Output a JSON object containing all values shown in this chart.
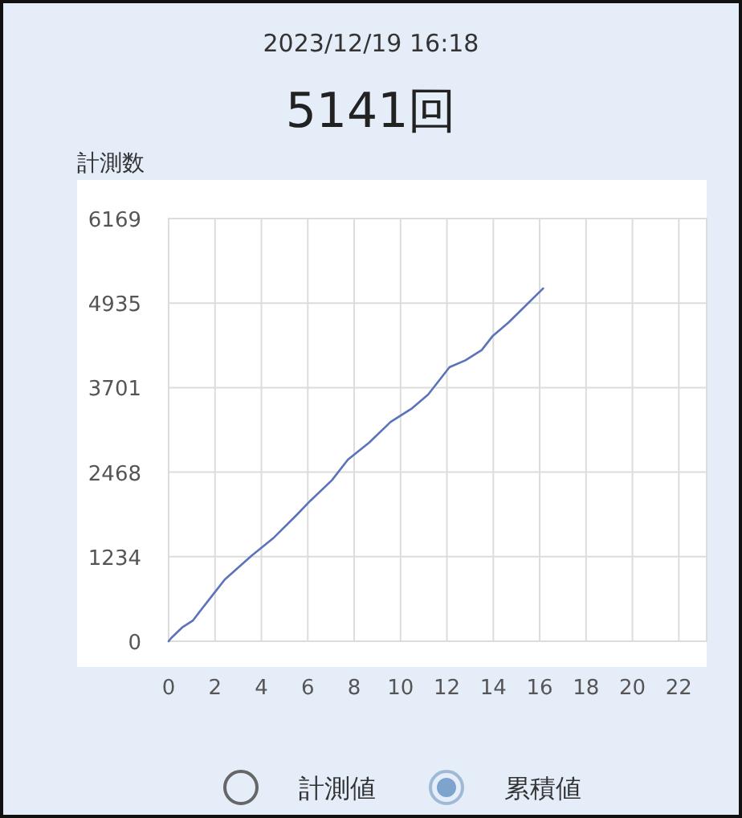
{
  "chart_data": {
    "type": "line",
    "title": "2023/12/19 16:18",
    "subtitle": "5141回",
    "ylabel": "計測数",
    "x": [
      0,
      0.12,
      0.58,
      1.04,
      1.61,
      2.42,
      3.58,
      4.5,
      5.54,
      6.11,
      7.04,
      7.73,
      8.65,
      9.57,
      10.5,
      11.19,
      12.11,
      12.8,
      13.5,
      13.96,
      14.65,
      15.1,
      16.15
    ],
    "series": [
      {
        "color": "#5b73b8",
        "values": [
          0,
          50,
          200,
          300,
          550,
          900,
          1250,
          1500,
          1850,
          2050,
          2350,
          2650,
          2900,
          3200,
          3400,
          3600,
          4000,
          4100,
          4250,
          4450,
          4650,
          4800,
          5150
        ]
      }
    ],
    "xlim": [
      0,
      23.2
    ],
    "xticks": [
      0,
      2,
      4,
      6,
      8,
      10,
      12,
      14,
      16,
      18,
      20,
      22
    ],
    "ylim": [
      0,
      6169
    ],
    "yticks": [
      0,
      1234,
      2468,
      3701,
      4935,
      6169
    ],
    "grid": true,
    "marker": "none",
    "line_style": "solid",
    "annotations": [
      "計測値",
      "累積値"
    ]
  }
}
